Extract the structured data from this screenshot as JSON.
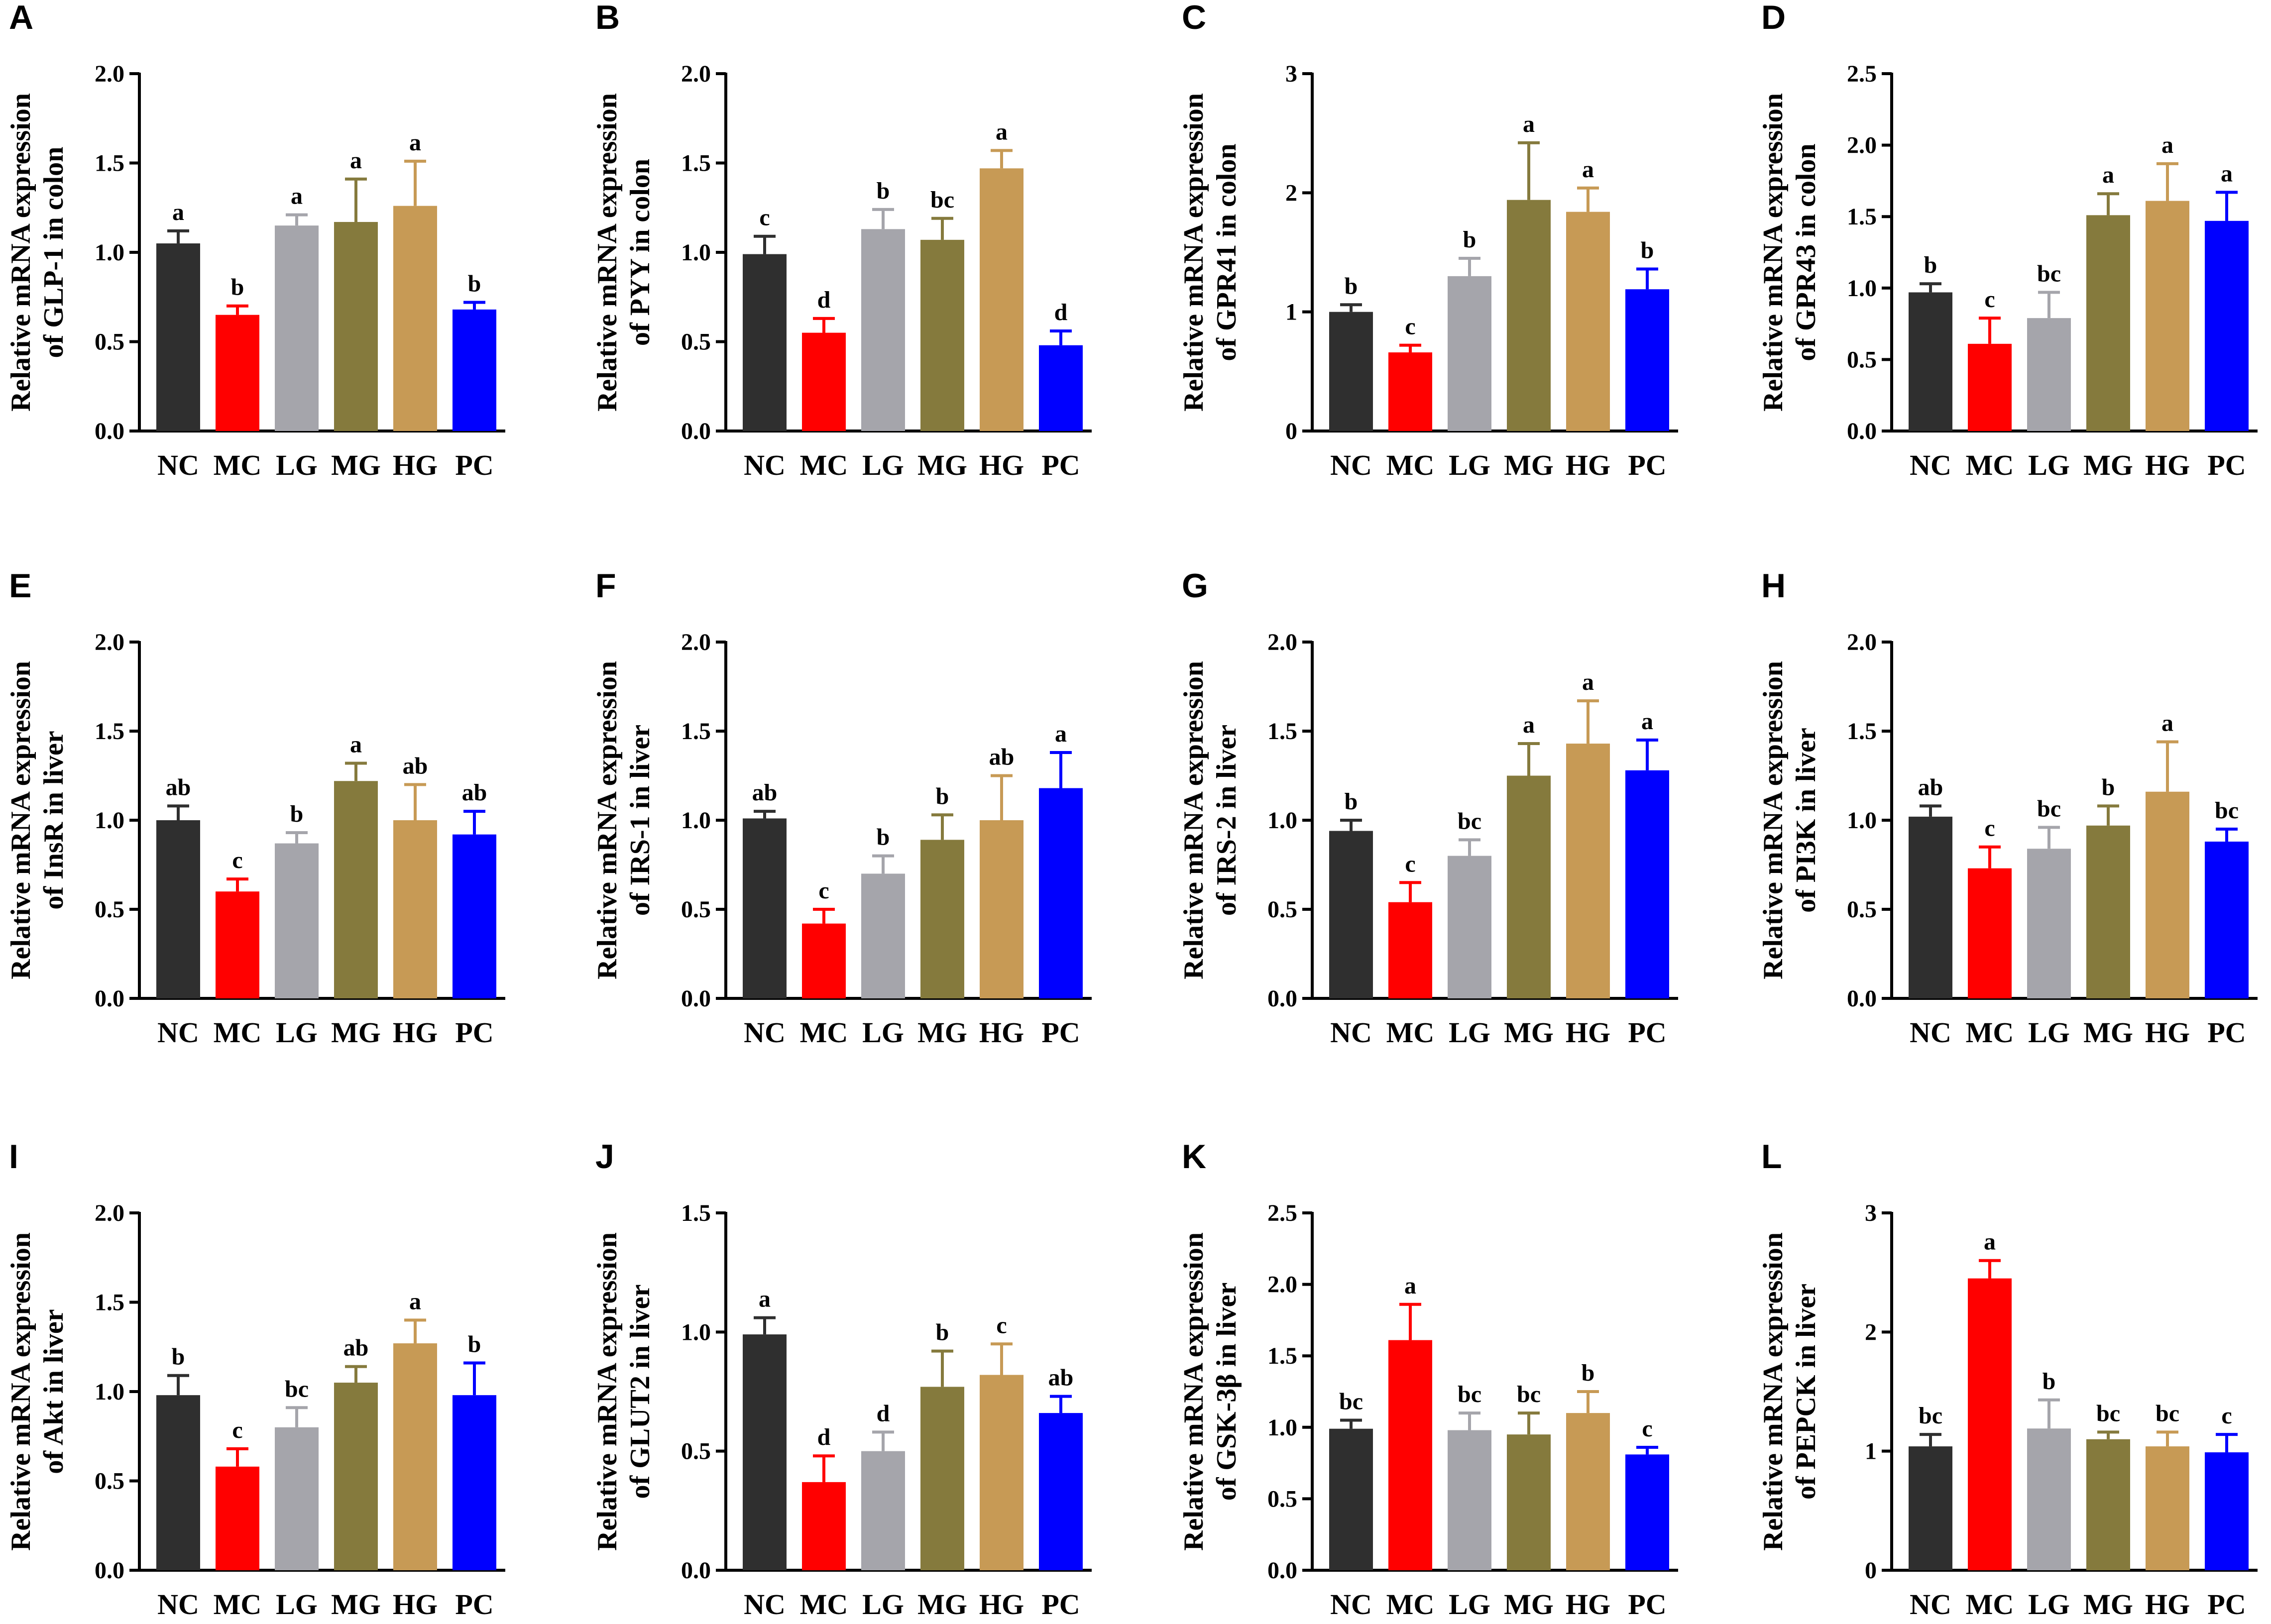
{
  "figure": {
    "group_colors": {
      "NC": "#2f2f2f",
      "MC": "#ff0000",
      "LG": "#a5a5ab",
      "MG": "#857a3d",
      "HG": "#c79a55",
      "PC": "#0000ff"
    }
  },
  "chart_data": [
    {
      "panel": "A",
      "type": "bar",
      "ylabel_line1": "Relative mRNA expression",
      "ylabel_line2": "of GLP-1 in colon",
      "categories": [
        "NC",
        "MC",
        "LG",
        "MG",
        "HG",
        "PC"
      ],
      "values": [
        1.05,
        0.65,
        1.15,
        1.17,
        1.26,
        0.68
      ],
      "errors": [
        0.07,
        0.05,
        0.06,
        0.24,
        0.25,
        0.04
      ],
      "significance": [
        "a",
        "b",
        "a",
        "a",
        "a",
        "b"
      ],
      "ylim": [
        0,
        2.0
      ],
      "yticks": [
        0.0,
        0.5,
        1.0,
        1.5,
        2.0
      ],
      "ytick_labels": [
        "0.0",
        "0.5",
        "1.0",
        "1.5",
        "2.0"
      ]
    },
    {
      "panel": "B",
      "type": "bar",
      "ylabel_line1": "Relative mRNA expression",
      "ylabel_line2": "of PYY in colon",
      "categories": [
        "NC",
        "MC",
        "LG",
        "MG",
        "HG",
        "PC"
      ],
      "values": [
        0.99,
        0.55,
        1.13,
        1.07,
        1.47,
        0.48
      ],
      "errors": [
        0.1,
        0.08,
        0.11,
        0.12,
        0.1,
        0.08
      ],
      "significance": [
        "c",
        "d",
        "b",
        "bc",
        "a",
        "d"
      ],
      "ylim": [
        0,
        2.0
      ],
      "yticks": [
        0.0,
        0.5,
        1.0,
        1.5,
        2.0
      ],
      "ytick_labels": [
        "0.0",
        "0.5",
        "1.0",
        "1.5",
        "2.0"
      ]
    },
    {
      "panel": "C",
      "type": "bar",
      "ylabel_line1": "Relative mRNA expression",
      "ylabel_line2": "of GPR41 in colon",
      "categories": [
        "NC",
        "MC",
        "LG",
        "MG",
        "HG",
        "PC"
      ],
      "values": [
        1.0,
        0.66,
        1.3,
        1.94,
        1.84,
        1.19
      ],
      "errors": [
        0.06,
        0.06,
        0.15,
        0.48,
        0.2,
        0.17
      ],
      "significance": [
        "b",
        "c",
        "b",
        "a",
        "a",
        "b"
      ],
      "ylim": [
        0,
        3
      ],
      "yticks": [
        0,
        1,
        2,
        3
      ],
      "ytick_labels": [
        "0",
        "1",
        "2",
        "3"
      ]
    },
    {
      "panel": "D",
      "type": "bar",
      "ylabel_line1": "Relative mRNA expression",
      "ylabel_line2": "of GPR43 in colon",
      "categories": [
        "NC",
        "MC",
        "LG",
        "MG",
        "HG",
        "PC"
      ],
      "values": [
        0.97,
        0.61,
        0.79,
        1.51,
        1.61,
        1.47
      ],
      "errors": [
        0.06,
        0.18,
        0.18,
        0.15,
        0.26,
        0.2
      ],
      "significance": [
        "b",
        "c",
        "bc",
        "a",
        "a",
        "a"
      ],
      "ylim": [
        0,
        2.5
      ],
      "yticks": [
        0.0,
        0.5,
        1.0,
        1.5,
        2.0,
        2.5
      ],
      "ytick_labels": [
        "0.0",
        "0.5",
        "1.0",
        "1.5",
        "2.0",
        "2.5"
      ]
    },
    {
      "panel": "E",
      "type": "bar",
      "ylabel_line1": "Relative mRNA expression",
      "ylabel_line2": "of InsR in liver",
      "categories": [
        "NC",
        "MC",
        "LG",
        "MG",
        "HG",
        "PC"
      ],
      "values": [
        1.0,
        0.6,
        0.87,
        1.22,
        1.0,
        0.92
      ],
      "errors": [
        0.08,
        0.07,
        0.06,
        0.1,
        0.2,
        0.13
      ],
      "significance": [
        "ab",
        "c",
        "b",
        "a",
        "ab",
        "ab"
      ],
      "ylim": [
        0,
        2.0
      ],
      "yticks": [
        0.0,
        0.5,
        1.0,
        1.5,
        2.0
      ],
      "ytick_labels": [
        "0.0",
        "0.5",
        "1.0",
        "1.5",
        "2.0"
      ]
    },
    {
      "panel": "F",
      "type": "bar",
      "ylabel_line1": "Relative mRNA expression",
      "ylabel_line2": "of IRS-1 in liver",
      "categories": [
        "NC",
        "MC",
        "LG",
        "MG",
        "HG",
        "PC"
      ],
      "values": [
        1.01,
        0.42,
        0.7,
        0.89,
        1.0,
        1.18
      ],
      "errors": [
        0.04,
        0.08,
        0.1,
        0.14,
        0.25,
        0.2
      ],
      "significance": [
        "ab",
        "c",
        "b",
        "b",
        "ab",
        "a"
      ],
      "ylim": [
        0,
        2.0
      ],
      "yticks": [
        0.0,
        0.5,
        1.0,
        1.5,
        2.0
      ],
      "ytick_labels": [
        "0.0",
        "0.5",
        "1.0",
        "1.5",
        "2.0"
      ]
    },
    {
      "panel": "G",
      "type": "bar",
      "ylabel_line1": "Relative mRNA expression",
      "ylabel_line2": "of IRS-2 in liver",
      "categories": [
        "NC",
        "MC",
        "LG",
        "MG",
        "HG",
        "PC"
      ],
      "values": [
        0.94,
        0.54,
        0.8,
        1.25,
        1.43,
        1.28
      ],
      "errors": [
        0.06,
        0.11,
        0.09,
        0.18,
        0.24,
        0.17
      ],
      "significance": [
        "b",
        "c",
        "bc",
        "a",
        "a",
        "a"
      ],
      "ylim": [
        0,
        2.0
      ],
      "yticks": [
        0.0,
        0.5,
        1.0,
        1.5,
        2.0
      ],
      "ytick_labels": [
        "0.0",
        "0.5",
        "1.0",
        "1.5",
        "2.0"
      ]
    },
    {
      "panel": "H",
      "type": "bar",
      "ylabel_line1": "Relative mRNA expression",
      "ylabel_line2": "of PI3K in liver",
      "categories": [
        "NC",
        "MC",
        "LG",
        "MG",
        "HG",
        "PC"
      ],
      "values": [
        1.02,
        0.73,
        0.84,
        0.97,
        1.16,
        0.88
      ],
      "errors": [
        0.06,
        0.12,
        0.12,
        0.11,
        0.28,
        0.07
      ],
      "significance": [
        "ab",
        "c",
        "bc",
        "b",
        "a",
        "bc"
      ],
      "ylim": [
        0,
        2.0
      ],
      "yticks": [
        0.0,
        0.5,
        1.0,
        1.5,
        2.0
      ],
      "ytick_labels": [
        "0.0",
        "0.5",
        "1.0",
        "1.5",
        "2.0"
      ]
    },
    {
      "panel": "I",
      "type": "bar",
      "ylabel_line1": "Relative mRNA expression",
      "ylabel_line2": "of Akt in liver",
      "categories": [
        "NC",
        "MC",
        "LG",
        "MG",
        "HG",
        "PC"
      ],
      "values": [
        0.98,
        0.58,
        0.8,
        1.05,
        1.27,
        0.98
      ],
      "errors": [
        0.11,
        0.1,
        0.11,
        0.09,
        0.13,
        0.18
      ],
      "significance": [
        "b",
        "c",
        "bc",
        "ab",
        "a",
        "b"
      ],
      "ylim": [
        0,
        2.0
      ],
      "yticks": [
        0.0,
        0.5,
        1.0,
        1.5,
        2.0
      ],
      "ytick_labels": [
        "0.0",
        "0.5",
        "1.0",
        "1.5",
        "2.0"
      ]
    },
    {
      "panel": "J",
      "type": "bar",
      "ylabel_line1": "Relative mRNA expression",
      "ylabel_line2": "of GLUT2 in liver",
      "categories": [
        "NC",
        "MC",
        "LG",
        "MG",
        "HG",
        "PC"
      ],
      "values": [
        0.99,
        0.37,
        0.5,
        0.77,
        0.82,
        0.66
      ],
      "errors": [
        0.07,
        0.11,
        0.08,
        0.15,
        0.13,
        0.07
      ],
      "significance": [
        "a",
        "d",
        "d",
        "b",
        "c",
        "ab"
      ],
      "ylim": [
        0,
        1.5
      ],
      "yticks": [
        0.0,
        0.5,
        1.0,
        1.5
      ],
      "ytick_labels": [
        "0.0",
        "0.5",
        "1.0",
        "1.5"
      ]
    },
    {
      "panel": "K",
      "type": "bar",
      "ylabel_line1": "Relative mRNA expression",
      "ylabel_line2": "of GSK-3β in liver",
      "categories": [
        "NC",
        "MC",
        "LG",
        "MG",
        "HG",
        "PC"
      ],
      "values": [
        0.99,
        1.61,
        0.98,
        0.95,
        1.1,
        0.81
      ],
      "errors": [
        0.06,
        0.25,
        0.12,
        0.15,
        0.15,
        0.05
      ],
      "significance": [
        "bc",
        "a",
        "bc",
        "bc",
        "b",
        "c"
      ],
      "ylim": [
        0,
        2.5
      ],
      "yticks": [
        0.0,
        0.5,
        1.0,
        1.5,
        2.0,
        2.5
      ],
      "ytick_labels": [
        "0.0",
        "0.5",
        "1.0",
        "1.5",
        "2.0",
        "2.5"
      ]
    },
    {
      "panel": "L",
      "type": "bar",
      "ylabel_line1": "Relative mRNA expression",
      "ylabel_line2": "of PEPCK in liver",
      "categories": [
        "NC",
        "MC",
        "LG",
        "MG",
        "HG",
        "PC"
      ],
      "values": [
        1.04,
        2.45,
        1.19,
        1.1,
        1.04,
        0.99
      ],
      "errors": [
        0.1,
        0.15,
        0.24,
        0.06,
        0.12,
        0.15
      ],
      "significance": [
        "bc",
        "a",
        "b",
        "bc",
        "bc",
        "c"
      ],
      "ylim": [
        0,
        3
      ],
      "yticks": [
        0,
        1,
        2,
        3
      ],
      "ytick_labels": [
        "0",
        "1",
        "2",
        "3"
      ]
    }
  ]
}
